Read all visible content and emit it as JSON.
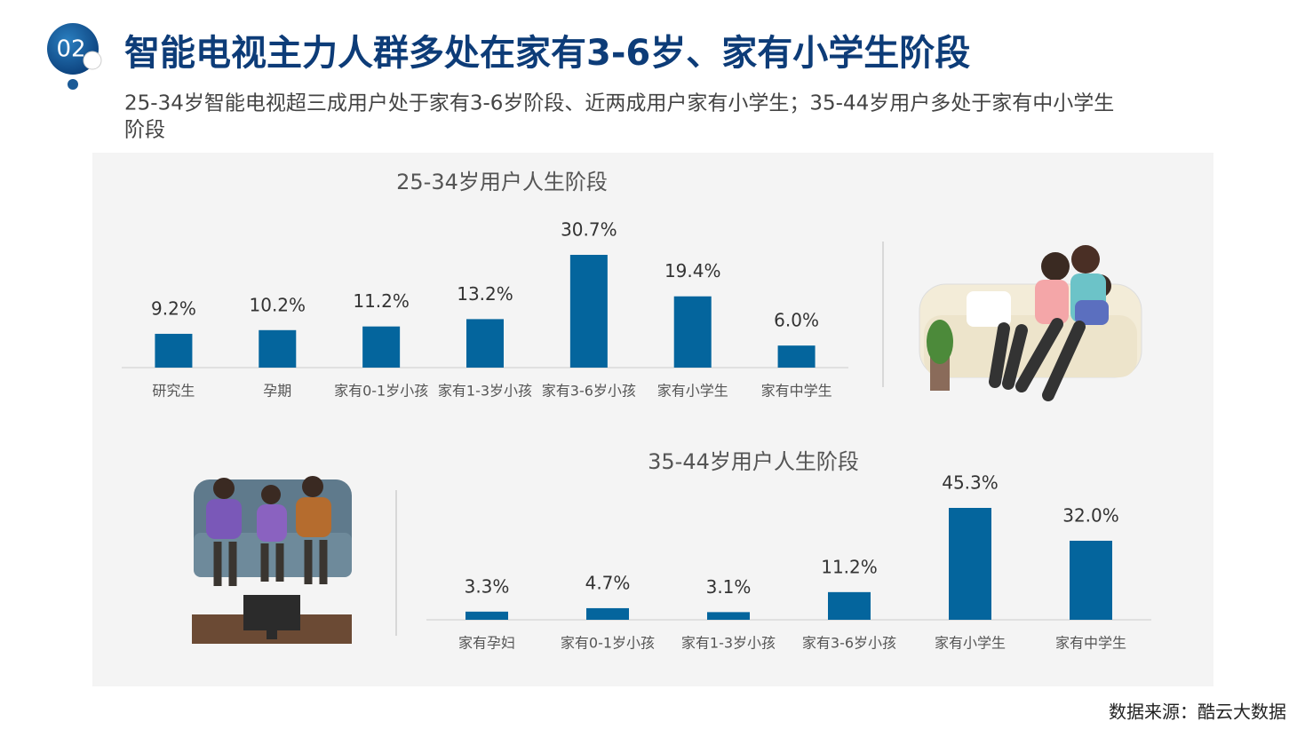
{
  "header": {
    "number": "02",
    "title": "智能电视主力人群多处在家有3-6岁、家有小学生阶段",
    "subtitle": [
      "25-34岁智能电视超三成用户处于家有3-6岁阶段、近两成用户家有小学生；35-44岁用户多处于家有中小学生",
      "阶段"
    ]
  },
  "chart_data": [
    {
      "type": "bar",
      "title": "25-34岁用户人生阶段",
      "categories": [
        "研究生",
        "孕期",
        "家有0-1岁小孩",
        "家有1-3岁小孩",
        "家有3-6岁小孩",
        "家有小学生",
        "家有中学生"
      ],
      "values": [
        9.2,
        10.2,
        11.2,
        13.2,
        30.7,
        19.4,
        6.0
      ],
      "value_labels": [
        "9.2%",
        "10.2%",
        "11.2%",
        "13.2%",
        "30.7%",
        "19.4%",
        "6.0%"
      ],
      "color": "#04659d"
    },
    {
      "type": "bar",
      "title": "35-44岁用户人生阶段",
      "categories": [
        "家有孕妇",
        "家有0-1岁小孩",
        "家有1-3岁小孩",
        "家有3-6岁小孩",
        "家有小学生",
        "家有中学生"
      ],
      "values": [
        3.3,
        4.7,
        3.1,
        11.2,
        45.3,
        32.0
      ],
      "value_labels": [
        "3.3%",
        "4.7%",
        "3.1%",
        "11.2%",
        "45.3%",
        "32.0%"
      ],
      "color": "#04659d"
    }
  ],
  "source": "数据来源：酷云大数据"
}
